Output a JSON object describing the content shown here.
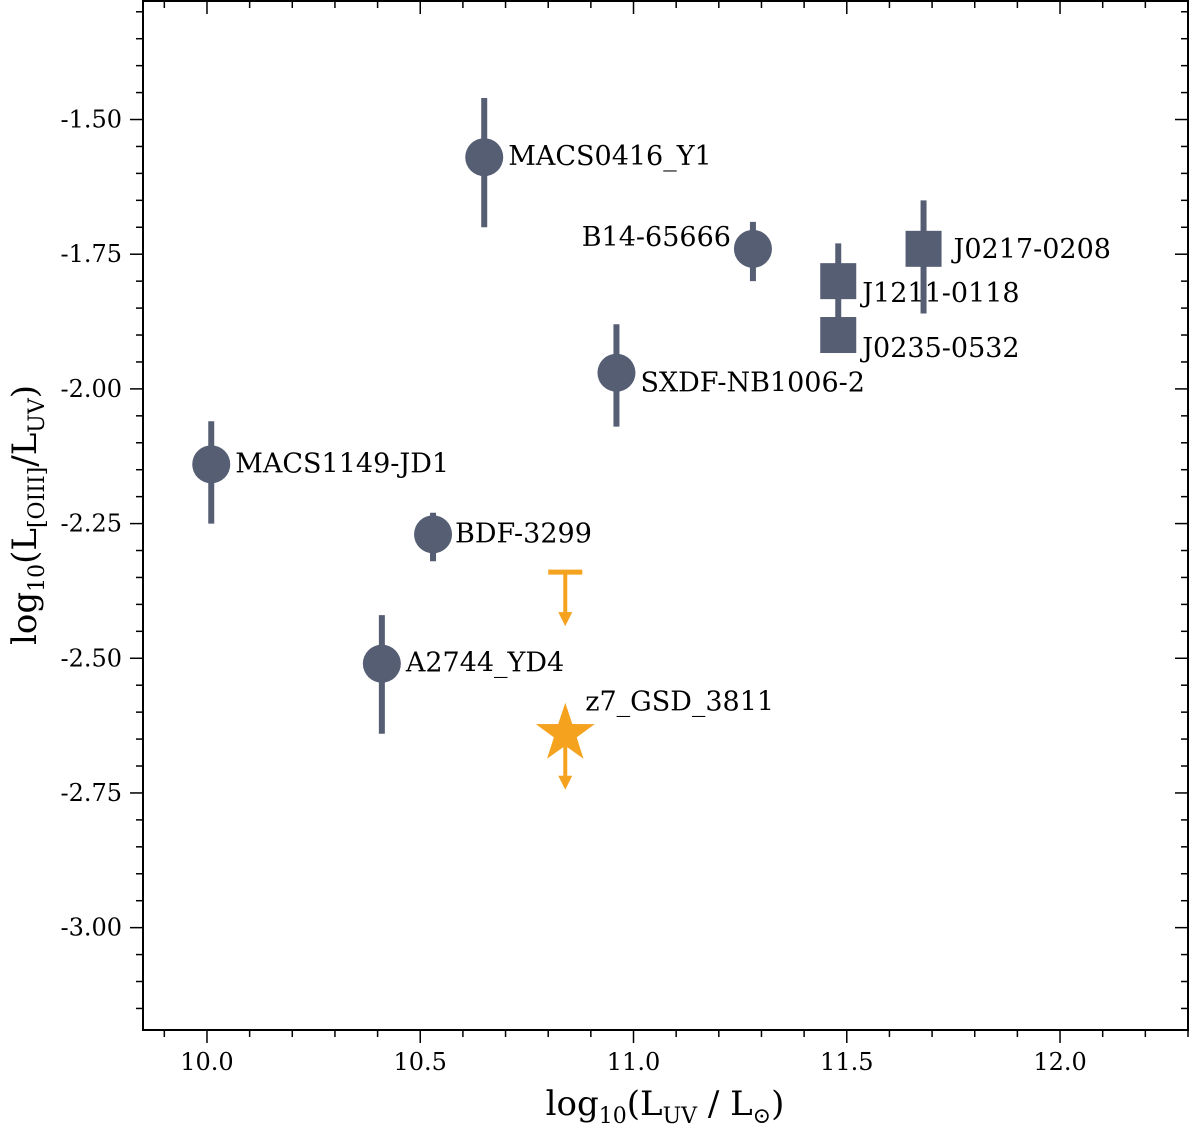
{
  "chart_data": {
    "type": "scatter",
    "title": "",
    "xlabel": {
      "pre": "log",
      "sub": "10",
      "open": "(L",
      "sub2": "UV",
      "post": " / L",
      "sub3": "⊙",
      "close": ")"
    },
    "ylabel": {
      "pre": "log",
      "sub": "10",
      "open": "(L",
      "sub2": "[OIII]",
      "mid": "/L",
      "sub3": "UV",
      "close": ")"
    },
    "xlim": [
      9.85,
      12.3
    ],
    "ylim": [
      -3.19,
      -1.28
    ],
    "xticks": [
      "10.0",
      "10.5",
      "11.0",
      "11.5",
      "12.0"
    ],
    "yticks": [
      "-1.50",
      "-1.75",
      "-2.00",
      "-2.25",
      "-2.50",
      "-2.75",
      "-3.00"
    ],
    "colors": {
      "literature": "#565e74",
      "highlight": "#f5a21f"
    },
    "series": [
      {
        "name": "circle points",
        "marker": "circle",
        "points": [
          {
            "label": "MACS0416_Y1",
            "x": 10.65,
            "y": -1.57,
            "ylo": -1.7,
            "yhi": -1.46
          },
          {
            "label": "B14-65666",
            "x": 11.28,
            "y": -1.74,
            "ylo": -1.8,
            "yhi": -1.69
          },
          {
            "label": "SXDF-NB1006-2",
            "x": 10.96,
            "y": -1.97,
            "ylo": -2.07,
            "yhi": -1.88
          },
          {
            "label": "MACS1149-JD1",
            "x": 10.01,
            "y": -2.14,
            "ylo": -2.25,
            "yhi": -2.06
          },
          {
            "label": "BDF-3299",
            "x": 10.53,
            "y": -2.27,
            "ylo": -2.32,
            "yhi": -2.23
          },
          {
            "label": "A2744_YD4",
            "x": 10.41,
            "y": -2.51,
            "ylo": -2.64,
            "yhi": -2.42
          }
        ]
      },
      {
        "name": "square points",
        "marker": "square",
        "points": [
          {
            "label": "J0217-0208",
            "x": 11.68,
            "y": -1.74,
            "ylo": -1.86,
            "yhi": -1.65
          },
          {
            "label": "J1211-0118",
            "x": 11.48,
            "y": -1.8,
            "ylo": -1.91,
            "yhi": -1.73
          },
          {
            "label": "J0235-0532",
            "x": 11.48,
            "y": -1.9,
            "ylo": -1.93,
            "yhi": -1.87
          }
        ]
      },
      {
        "name": "highlight",
        "marker": "star",
        "points": [
          {
            "label": "z7_GSD_3811",
            "x": 10.84,
            "y": -2.64,
            "upper_limit": true
          }
        ]
      },
      {
        "name": "upper limit marker",
        "marker": "upper-limit-bar",
        "points": [
          {
            "label": "",
            "x": 10.84,
            "y": -2.34,
            "upper_limit": true
          }
        ]
      }
    ]
  }
}
